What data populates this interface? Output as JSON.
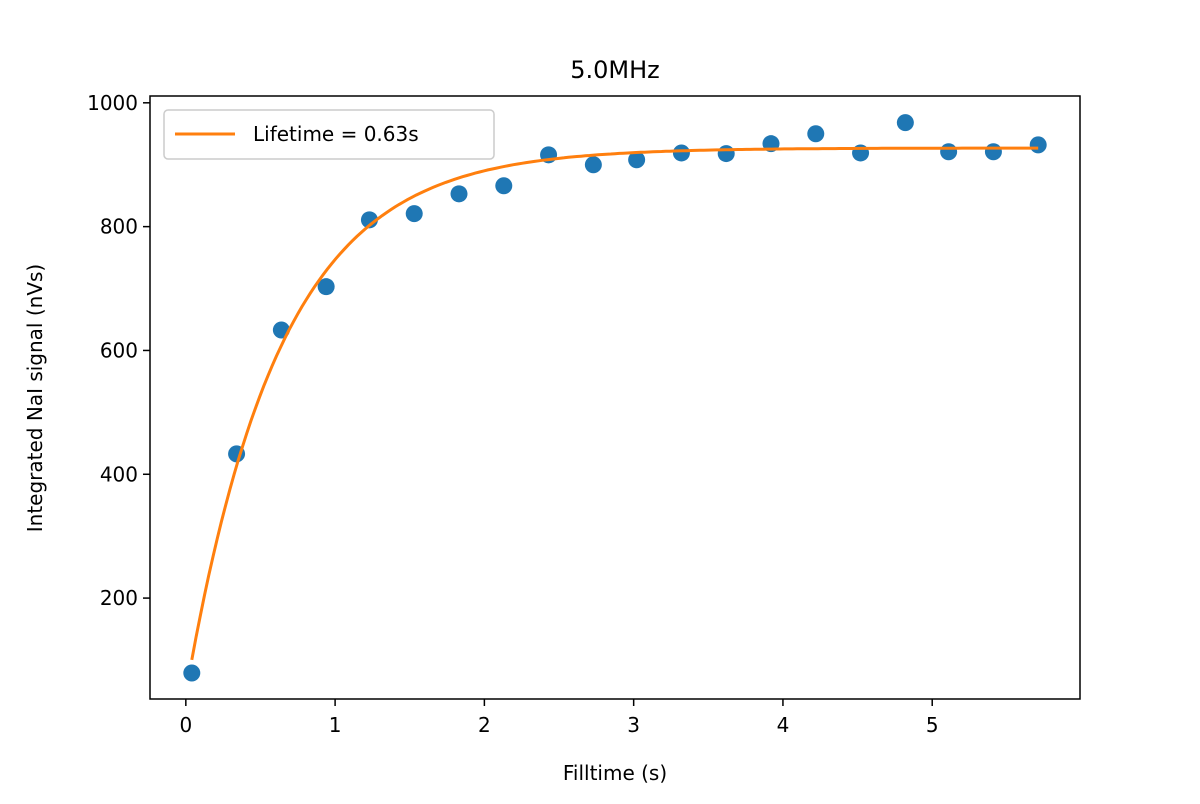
{
  "chart_data": {
    "type": "scatter",
    "title": "5.0MHz",
    "xlabel": "Filltime (s)",
    "ylabel": "Integrated NaI signal (nVs)",
    "xlim": [
      -0.24,
      5.99
    ],
    "ylim": [
      37,
      1011
    ],
    "xticks": [
      0,
      1,
      2,
      3,
      4,
      5
    ],
    "yticks": [
      200,
      400,
      600,
      800,
      1000
    ],
    "grid": false,
    "legend_position": "top-left",
    "series": [
      {
        "name": "data",
        "kind": "scatter",
        "color": "#1f77b4",
        "x": [
          0.04,
          0.34,
          0.64,
          0.94,
          1.23,
          1.53,
          1.83,
          2.13,
          2.43,
          2.73,
          3.02,
          3.32,
          3.62,
          3.92,
          4.22,
          4.52,
          4.82,
          5.11,
          5.41,
          5.71
        ],
        "y": [
          79,
          433,
          633,
          703,
          811,
          821,
          853,
          866,
          916,
          900,
          908,
          919,
          918,
          934,
          950,
          919,
          968,
          921,
          921,
          932
        ]
      },
      {
        "name": "Lifetime = 0.63s",
        "kind": "line",
        "color": "#ff7f0e",
        "model": {
          "plateau": 927,
          "amplitude": 881,
          "lifetime": 0.63
        },
        "x_range": [
          0.04,
          5.71
        ]
      }
    ]
  }
}
